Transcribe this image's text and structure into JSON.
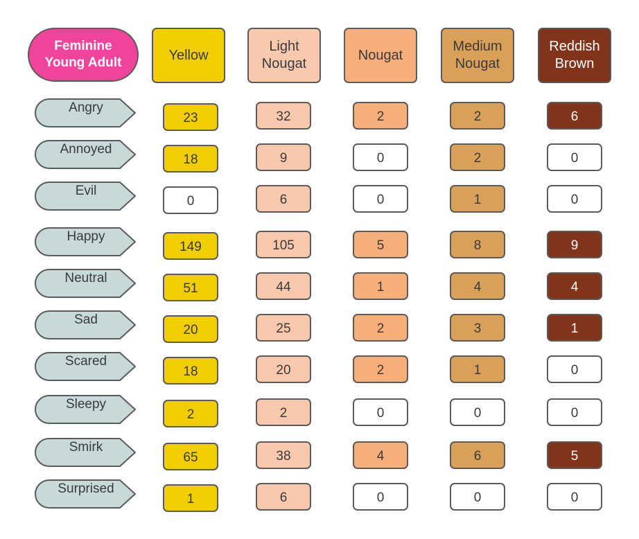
{
  "title": {
    "label": "Feminine\nYoung Adult",
    "color": "#f0449b"
  },
  "columns": [
    {
      "label": "Yellow",
      "color": "#f2cd00"
    },
    {
      "label": "Light\nNougat",
      "color": "#f8c9ac"
    },
    {
      "label": "Nougat",
      "color": "#f6ae7b"
    },
    {
      "label": "Medium\nNougat",
      "color": "#d9a05a"
    },
    {
      "label": "Reddish\nBrown",
      "color": "#82341a"
    }
  ],
  "rows": [
    {
      "label": "Angry",
      "values": [
        23,
        32,
        2,
        2,
        6
      ]
    },
    {
      "label": "Annoyed",
      "values": [
        18,
        9,
        0,
        2,
        0
      ]
    },
    {
      "label": "Evil",
      "values": [
        0,
        6,
        0,
        1,
        0
      ]
    },
    {
      "label": "Happy",
      "values": [
        149,
        105,
        5,
        8,
        9
      ]
    },
    {
      "label": "Neutral",
      "values": [
        51,
        44,
        1,
        4,
        4
      ]
    },
    {
      "label": "Sad",
      "values": [
        20,
        25,
        2,
        3,
        1
      ]
    },
    {
      "label": "Scared",
      "values": [
        18,
        20,
        2,
        1,
        0
      ]
    },
    {
      "label": "Sleepy",
      "values": [
        2,
        2,
        0,
        0,
        0
      ]
    },
    {
      "label": "Smirk",
      "values": [
        65,
        38,
        4,
        6,
        5
      ]
    },
    {
      "label": "Surprised",
      "values": [
        1,
        6,
        0,
        0,
        0
      ]
    }
  ],
  "colors": {
    "row_label_fill": "#c7d9d9",
    "zero_fill": "#ffffff",
    "border": "#5a5a5a"
  }
}
